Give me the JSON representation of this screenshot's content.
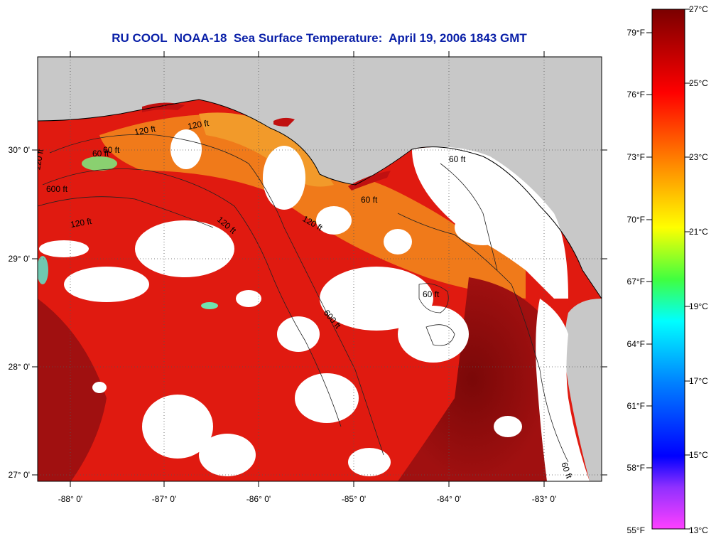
{
  "title": "RU COOL  NOAA-18  Sea Surface Temperature:  April 19, 2006 1843 GMT",
  "map": {
    "lon_labels": [
      "-88° 0'",
      "-87° 0'",
      "-86° 0'",
      "-85° 0'",
      "-84° 0'",
      "-83° 0'"
    ],
    "lat_labels": [
      "30° 0'",
      "29° 0'",
      "28° 0'",
      "27° 0'"
    ],
    "contour_labels": [
      "120 ft",
      "120 ft",
      "60 ft",
      "600 ft",
      "120 ft",
      "120 ft",
      "60 ft",
      "60 ft",
      "120 ft",
      "600 ft",
      "60 ft",
      "60 ft",
      "120 ft",
      "60 ft"
    ],
    "colors": {
      "land": "#c8c8c8",
      "cloud": "#ffffff",
      "warm": "#e01a10",
      "hot": "#8a0a0a",
      "coastal": "#f07a1a"
    }
  },
  "colorbar": {
    "celsius_labels": [
      "27°C",
      "25°C",
      "23°C",
      "21°C",
      "19°C",
      "17°C",
      "15°C",
      "13°C"
    ],
    "fahrenheit_labels": [
      "79°F",
      "76°F",
      "73°F",
      "70°F",
      "67°F",
      "64°F",
      "61°F",
      "58°F",
      "55°F"
    ],
    "stops": [
      "#7a0000",
      "#ff0000",
      "#ff8a00",
      "#ffff00",
      "#40ff40",
      "#00ffff",
      "#0050ff",
      "#0000ff",
      "#8040ff",
      "#ff40ff"
    ]
  }
}
